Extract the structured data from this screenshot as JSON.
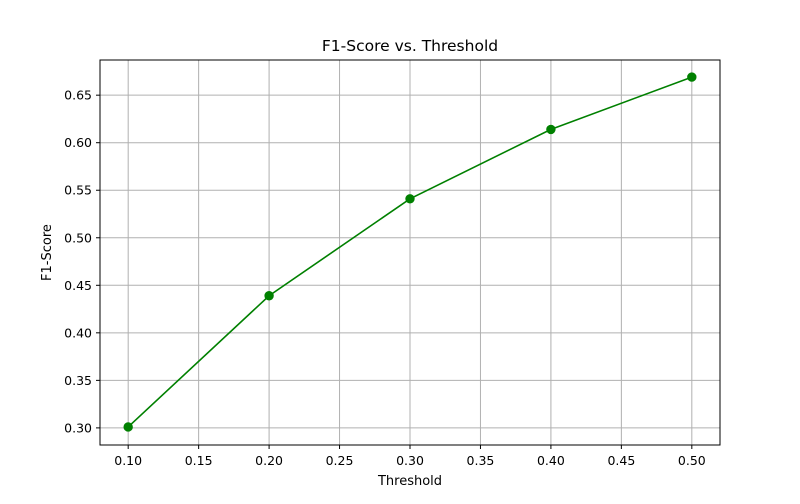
{
  "chart_data": {
    "type": "line",
    "title": "F1-Score vs. Threshold",
    "xlabel": "Threshold",
    "ylabel": "F1-Score",
    "x": [
      0.1,
      0.2,
      0.3,
      0.4,
      0.5
    ],
    "series": [
      {
        "values": [
          0.301,
          0.439,
          0.541,
          0.614,
          0.669
        ]
      }
    ],
    "xlim": [
      0.08,
      0.52
    ],
    "ylim": [
      0.282,
      0.687
    ],
    "xticks": [
      0.1,
      0.15,
      0.2,
      0.25,
      0.3,
      0.35,
      0.4,
      0.45,
      0.5
    ],
    "xtick_labels": [
      "0.10",
      "0.15",
      "0.20",
      "0.25",
      "0.30",
      "0.35",
      "0.40",
      "0.45",
      "0.50"
    ],
    "yticks": [
      0.3,
      0.35,
      0.4,
      0.45,
      0.5,
      0.55,
      0.6,
      0.65
    ],
    "ytick_labels": [
      "0.30",
      "0.35",
      "0.40",
      "0.45",
      "0.50",
      "0.55",
      "0.60",
      "0.65"
    ],
    "grid": true,
    "colors": {
      "line": "#008000",
      "grid": "#b0b0b0",
      "axes": "#000000"
    },
    "marker": "circle"
  }
}
